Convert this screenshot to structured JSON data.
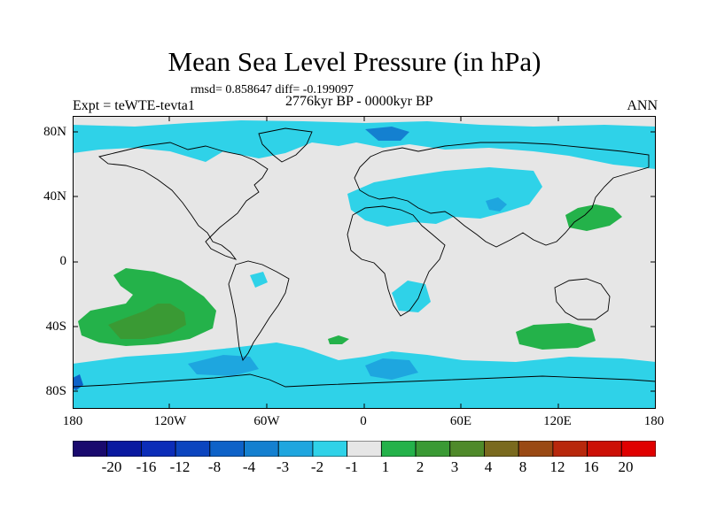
{
  "title": "Mean Sea Level Pressure (in hPa)",
  "stats_line": "rmsd= 0.858647 diff= -0.199097",
  "period": "2776kyr BP - 0000kyr BP",
  "experiment": "Expt = teWTE-tevta1",
  "season": "ANN",
  "axes": {
    "y_ticks": [
      "80N",
      "40N",
      "0",
      "40S",
      "80S"
    ],
    "x_ticks": [
      "180",
      "120W",
      "60W",
      "0",
      "60E",
      "120E",
      "180"
    ]
  },
  "colorbar": {
    "labels": [
      "-20",
      "-16",
      "-12",
      "-8",
      "-4",
      "-3",
      "-2",
      "-1",
      "1",
      "2",
      "3",
      "4",
      "8",
      "12",
      "16",
      "20"
    ],
    "colors": [
      "#1a0a6e",
      "#0a1aa0",
      "#0c2db8",
      "#0c45bf",
      "#0e62c8",
      "#1480d0",
      "#1ea6df",
      "#2fd2e8",
      "#e6e6e6",
      "#24b24a",
      "#3a9a34",
      "#4f8a2a",
      "#7a6a1e",
      "#9a4a14",
      "#b8280c",
      "#cc1006",
      "#e00000"
    ]
  },
  "map_colors": {
    "background": "#e6e6e6",
    "neg1": "#2fd2e8",
    "neg2": "#1ea6df",
    "neg3": "#1480d0",
    "neg4": "#0e62c8",
    "pos1": "#24b24a",
    "pos2": "#3a9a34",
    "pos3": "#4f8a2a",
    "coast": "#000000"
  }
}
